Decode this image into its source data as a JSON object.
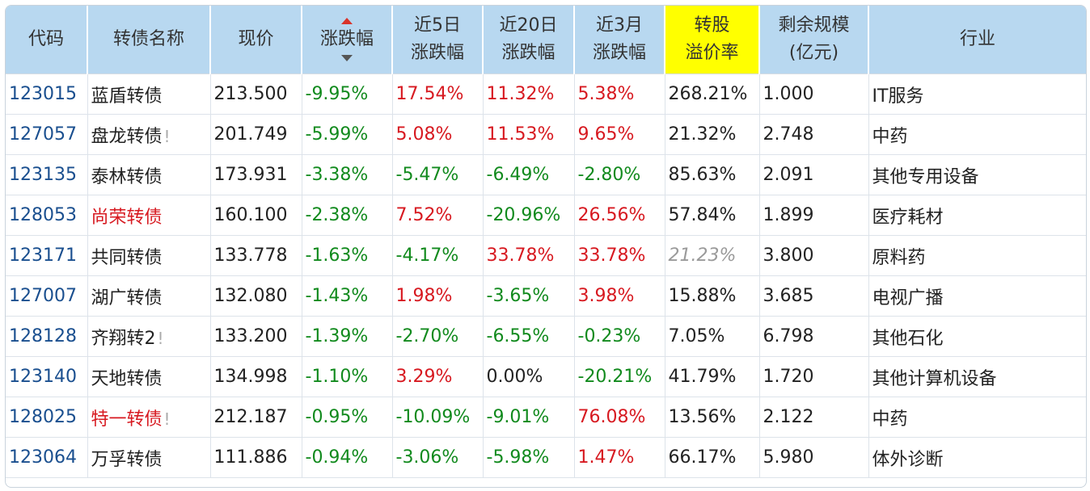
{
  "table": {
    "headers": [
      {
        "line1": "代码",
        "line2": ""
      },
      {
        "line1": "转债名称",
        "line2": ""
      },
      {
        "line1": "现价",
        "line2": ""
      },
      {
        "line1": "涨跌幅",
        "line2": ""
      },
      {
        "line1": "近5日",
        "line2": "涨跌幅"
      },
      {
        "line1": "近20日",
        "line2": "涨跌幅"
      },
      {
        "line1": "近3月",
        "line2": "涨跌幅"
      },
      {
        "line1": "转股",
        "line2": "溢价率"
      },
      {
        "line1": "剩余规模",
        "line2": "(亿元)"
      },
      {
        "line1": "行业",
        "line2": ""
      }
    ],
    "rows": [
      {
        "code": "123015",
        "name": "蓝盾转债",
        "name_flag": "",
        "price": "213.500",
        "chg": "-9.95%",
        "chg5": "17.54%",
        "chg20": "11.32%",
        "chg3m": "5.38%",
        "premium": "268.21%",
        "size": "1.000",
        "industry": "IT服务"
      },
      {
        "code": "127057",
        "name": "盘龙转债",
        "name_flag": "!",
        "price": "201.749",
        "chg": "-5.99%",
        "chg5": "5.08%",
        "chg20": "11.53%",
        "chg3m": "9.65%",
        "premium": "21.32%",
        "size": "2.748",
        "industry": "中药"
      },
      {
        "code": "123135",
        "name": "泰林转债",
        "name_flag": "",
        "price": "173.931",
        "chg": "-3.38%",
        "chg5": "-5.47%",
        "chg20": "-6.49%",
        "chg3m": "-2.80%",
        "premium": "85.63%",
        "size": "2.091",
        "industry": "其他专用设备"
      },
      {
        "code": "128053",
        "name": "尚荣转债",
        "name_flag": "",
        "price": "160.100",
        "chg": "-2.38%",
        "chg5": "7.52%",
        "chg20": "-20.96%",
        "chg3m": "26.56%",
        "premium": "57.84%",
        "size": "1.899",
        "industry": "医疗耗材"
      },
      {
        "code": "123171",
        "name": "共同转债",
        "name_flag": "",
        "price": "133.778",
        "chg": "-1.63%",
        "chg5": "-4.17%",
        "chg20": "33.78%",
        "chg3m": "33.78%",
        "premium": "21.23%",
        "size": "3.800",
        "industry": "原料药"
      },
      {
        "code": "127007",
        "name": "湖广转债",
        "name_flag": "",
        "price": "132.080",
        "chg": "-1.43%",
        "chg5": "1.98%",
        "chg20": "-3.65%",
        "chg3m": "3.98%",
        "premium": "15.88%",
        "size": "3.685",
        "industry": "电视广播"
      },
      {
        "code": "128128",
        "name": "齐翔转2",
        "name_flag": "!",
        "price": "133.200",
        "chg": "-1.39%",
        "chg5": "-2.70%",
        "chg20": "-6.55%",
        "chg3m": "-0.23%",
        "premium": "7.05%",
        "size": "6.798",
        "industry": "其他石化"
      },
      {
        "code": "123140",
        "name": "天地转债",
        "name_flag": "",
        "price": "134.998",
        "chg": "-1.10%",
        "chg5": "3.29%",
        "chg20": "0.00%",
        "chg3m": "-20.21%",
        "premium": "41.79%",
        "size": "1.720",
        "industry": "其他计算机设备"
      },
      {
        "code": "128025",
        "name": "特一转债",
        "name_flag": "!",
        "price": "212.187",
        "chg": "-0.95%",
        "chg5": "-10.09%",
        "chg20": "-9.01%",
        "chg3m": "76.08%",
        "premium": "13.56%",
        "size": "2.122",
        "industry": "中药"
      },
      {
        "code": "123064",
        "name": "万孚转债",
        "name_flag": "",
        "price": "111.886",
        "chg": "-0.94%",
        "chg5": "-3.06%",
        "chg20": "-5.98%",
        "chg3m": "1.47%",
        "premium": "66.17%",
        "size": "5.980",
        "industry": "体外诊断"
      }
    ]
  },
  "colors": {
    "up": "#d71920",
    "down": "#118a1d",
    "header_bg": "#b8d8f0",
    "highlight": "#ffff00",
    "code": "#1a4f8f"
  },
  "icons": {
    "sort_asc": "triangle-up-icon",
    "sort_desc": "triangle-down-icon"
  }
}
